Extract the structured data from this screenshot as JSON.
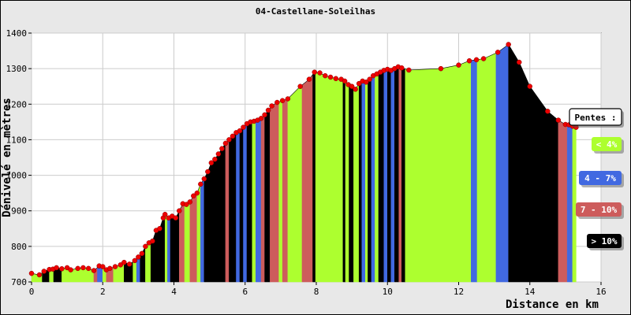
{
  "chart_data": {
    "type": "area",
    "title": "04-Castellane-Soleilhas",
    "xlabel": "Distance en km",
    "ylabel": "Dénivelé en mètres",
    "xlim": [
      0,
      16
    ],
    "ylim": [
      700,
      1400
    ],
    "x_ticks": [
      "0",
      "2",
      "4",
      "6",
      "8",
      "10",
      "12",
      "14",
      "16"
    ],
    "y_ticks": [
      "700",
      "800",
      "900",
      "1000",
      "1100",
      "1200",
      "1300",
      "1400"
    ],
    "grid": true,
    "legend_position": "right",
    "legend": {
      "title": "Pentes :",
      "entries": [
        {
          "label": "< 4%",
          "color": "#adff2f",
          "text_color": "#ffffff"
        },
        {
          "label": "4 - 7%",
          "color": "#4169e1",
          "text_color": "#ffffff"
        },
        {
          "label": "7 - 10%",
          "color": "#cd5c5c",
          "text_color": "#ffffff"
        },
        {
          "label": "> 10%",
          "color": "#000000",
          "text_color": "#ffffff"
        }
      ]
    },
    "colors": {
      "lt4": "#adff2f",
      "4to7": "#4169e1",
      "7to10": "#cd5c5c",
      "gt10": "#000000",
      "point": "#ee0000"
    },
    "profile": [
      [
        0.0,
        724
      ],
      [
        0.22,
        720
      ],
      [
        0.35,
        730
      ],
      [
        0.5,
        735
      ],
      [
        0.6,
        736
      ],
      [
        0.7,
        740
      ],
      [
        0.85,
        737
      ],
      [
        1.0,
        740
      ],
      [
        1.1,
        734
      ],
      [
        1.3,
        738
      ],
      [
        1.45,
        740
      ],
      [
        1.6,
        738
      ],
      [
        1.75,
        732
      ],
      [
        1.9,
        745
      ],
      [
        2.0,
        743
      ],
      [
        2.1,
        734
      ],
      [
        2.2,
        738
      ],
      [
        2.35,
        743
      ],
      [
        2.5,
        748
      ],
      [
        2.6,
        755
      ],
      [
        2.75,
        750
      ],
      [
        2.9,
        760
      ],
      [
        3.0,
        770
      ],
      [
        3.1,
        780
      ],
      [
        3.2,
        800
      ],
      [
        3.3,
        810
      ],
      [
        3.4,
        815
      ],
      [
        3.5,
        845
      ],
      [
        3.6,
        850
      ],
      [
        3.7,
        880
      ],
      [
        3.75,
        890
      ],
      [
        3.85,
        880
      ],
      [
        3.95,
        885
      ],
      [
        4.05,
        880
      ],
      [
        4.15,
        900
      ],
      [
        4.25,
        920
      ],
      [
        4.35,
        918
      ],
      [
        4.45,
        925
      ],
      [
        4.55,
        942
      ],
      [
        4.65,
        950
      ],
      [
        4.75,
        975
      ],
      [
        4.85,
        990
      ],
      [
        4.95,
        1010
      ],
      [
        5.05,
        1035
      ],
      [
        5.15,
        1045
      ],
      [
        5.25,
        1060
      ],
      [
        5.35,
        1075
      ],
      [
        5.45,
        1090
      ],
      [
        5.55,
        1100
      ],
      [
        5.65,
        1110
      ],
      [
        5.75,
        1120
      ],
      [
        5.85,
        1125
      ],
      [
        5.95,
        1135
      ],
      [
        6.05,
        1145
      ],
      [
        6.15,
        1150
      ],
      [
        6.25,
        1152
      ],
      [
        6.35,
        1155
      ],
      [
        6.45,
        1160
      ],
      [
        6.55,
        1170
      ],
      [
        6.65,
        1183
      ],
      [
        6.75,
        1195
      ],
      [
        6.9,
        1205
      ],
      [
        7.05,
        1210
      ],
      [
        7.2,
        1215
      ],
      [
        7.55,
        1250
      ],
      [
        7.8,
        1270
      ],
      [
        7.95,
        1290
      ],
      [
        8.1,
        1288
      ],
      [
        8.25,
        1280
      ],
      [
        8.4,
        1276
      ],
      [
        8.55,
        1272
      ],
      [
        8.7,
        1270
      ],
      [
        8.8,
        1265
      ],
      [
        8.9,
        1255
      ],
      [
        9.0,
        1250
      ],
      [
        9.1,
        1242
      ],
      [
        9.2,
        1258
      ],
      [
        9.3,
        1265
      ],
      [
        9.4,
        1262
      ],
      [
        9.5,
        1270
      ],
      [
        9.6,
        1280
      ],
      [
        9.7,
        1285
      ],
      [
        9.8,
        1290
      ],
      [
        9.9,
        1295
      ],
      [
        10.0,
        1298
      ],
      [
        10.1,
        1295
      ],
      [
        10.2,
        1300
      ],
      [
        10.3,
        1305
      ],
      [
        10.4,
        1302
      ],
      [
        10.6,
        1296
      ],
      [
        11.5,
        1300
      ],
      [
        12.0,
        1310
      ],
      [
        12.3,
        1322
      ],
      [
        12.5,
        1325
      ],
      [
        12.7,
        1328
      ],
      [
        13.1,
        1346
      ],
      [
        13.4,
        1368
      ],
      [
        13.7,
        1318
      ],
      [
        14.0,
        1250
      ],
      [
        14.5,
        1180
      ],
      [
        14.8,
        1155
      ],
      [
        15.0,
        1143
      ],
      [
        15.1,
        1142
      ],
      [
        15.2,
        1138
      ],
      [
        15.3,
        1135
      ]
    ],
    "slope_bands": [
      [
        0.0,
        0.3,
        "lt4"
      ],
      [
        0.3,
        0.5,
        "gt10"
      ],
      [
        0.5,
        0.62,
        "lt4"
      ],
      [
        0.62,
        0.85,
        "gt10"
      ],
      [
        0.85,
        1.75,
        "lt4"
      ],
      [
        1.75,
        1.85,
        "7to10"
      ],
      [
        1.85,
        2.0,
        "4to7"
      ],
      [
        2.0,
        2.1,
        "lt4"
      ],
      [
        2.1,
        2.3,
        "7to10"
      ],
      [
        2.3,
        2.6,
        "lt4"
      ],
      [
        2.6,
        2.85,
        "gt10"
      ],
      [
        2.85,
        2.95,
        "lt4"
      ],
      [
        2.95,
        3.05,
        "4to7"
      ],
      [
        3.05,
        3.2,
        "gt10"
      ],
      [
        3.2,
        3.35,
        "lt4"
      ],
      [
        3.35,
        3.75,
        "gt10"
      ],
      [
        3.75,
        3.82,
        "lt4"
      ],
      [
        3.82,
        3.9,
        "4to7"
      ],
      [
        3.9,
        4.15,
        "gt10"
      ],
      [
        4.15,
        4.3,
        "7to10"
      ],
      [
        4.3,
        4.45,
        "lt4"
      ],
      [
        4.45,
        4.65,
        "7to10"
      ],
      [
        4.65,
        4.75,
        "lt4"
      ],
      [
        4.75,
        4.85,
        "4to7"
      ],
      [
        4.85,
        5.45,
        "gt10"
      ],
      [
        5.45,
        5.55,
        "7to10"
      ],
      [
        5.55,
        5.75,
        "gt10"
      ],
      [
        5.75,
        5.85,
        "4to7"
      ],
      [
        5.85,
        5.95,
        "gt10"
      ],
      [
        5.95,
        6.05,
        "4to7"
      ],
      [
        6.05,
        6.2,
        "gt10"
      ],
      [
        6.2,
        6.3,
        "lt4"
      ],
      [
        6.3,
        6.45,
        "4to7"
      ],
      [
        6.45,
        6.55,
        "7to10"
      ],
      [
        6.55,
        6.7,
        "gt10"
      ],
      [
        6.7,
        6.95,
        "7to10"
      ],
      [
        6.95,
        7.05,
        "lt4"
      ],
      [
        7.05,
        7.2,
        "7to10"
      ],
      [
        7.2,
        7.6,
        "lt4"
      ],
      [
        7.6,
        7.9,
        "7to10"
      ],
      [
        7.9,
        7.98,
        "gt10"
      ],
      [
        7.98,
        8.5,
        "lt4"
      ],
      [
        8.5,
        8.75,
        "lt4"
      ],
      [
        8.75,
        8.82,
        "gt10"
      ],
      [
        8.82,
        8.92,
        "lt4"
      ],
      [
        8.92,
        9.05,
        "gt10"
      ],
      [
        9.05,
        9.2,
        "lt4"
      ],
      [
        9.2,
        9.28,
        "gt10"
      ],
      [
        9.28,
        9.38,
        "4to7"
      ],
      [
        9.38,
        9.45,
        "lt4"
      ],
      [
        9.45,
        9.55,
        "gt10"
      ],
      [
        9.55,
        9.65,
        "4to7"
      ],
      [
        9.65,
        9.75,
        "lt4"
      ],
      [
        9.75,
        9.9,
        "gt10"
      ],
      [
        9.9,
        10.0,
        "4to7"
      ],
      [
        10.0,
        10.1,
        "gt10"
      ],
      [
        10.1,
        10.2,
        "4to7"
      ],
      [
        10.2,
        10.32,
        "gt10"
      ],
      [
        10.32,
        10.4,
        "7to10"
      ],
      [
        10.4,
        10.5,
        "gt10"
      ],
      [
        10.5,
        12.35,
        "lt4"
      ],
      [
        12.35,
        12.52,
        "4to7"
      ],
      [
        12.52,
        13.05,
        "lt4"
      ],
      [
        13.05,
        13.4,
        "4to7"
      ],
      [
        13.4,
        14.8,
        "gt10"
      ],
      [
        14.8,
        15.05,
        "7to10"
      ],
      [
        15.05,
        15.2,
        "4to7"
      ],
      [
        15.2,
        15.3,
        "lt4"
      ]
    ]
  }
}
